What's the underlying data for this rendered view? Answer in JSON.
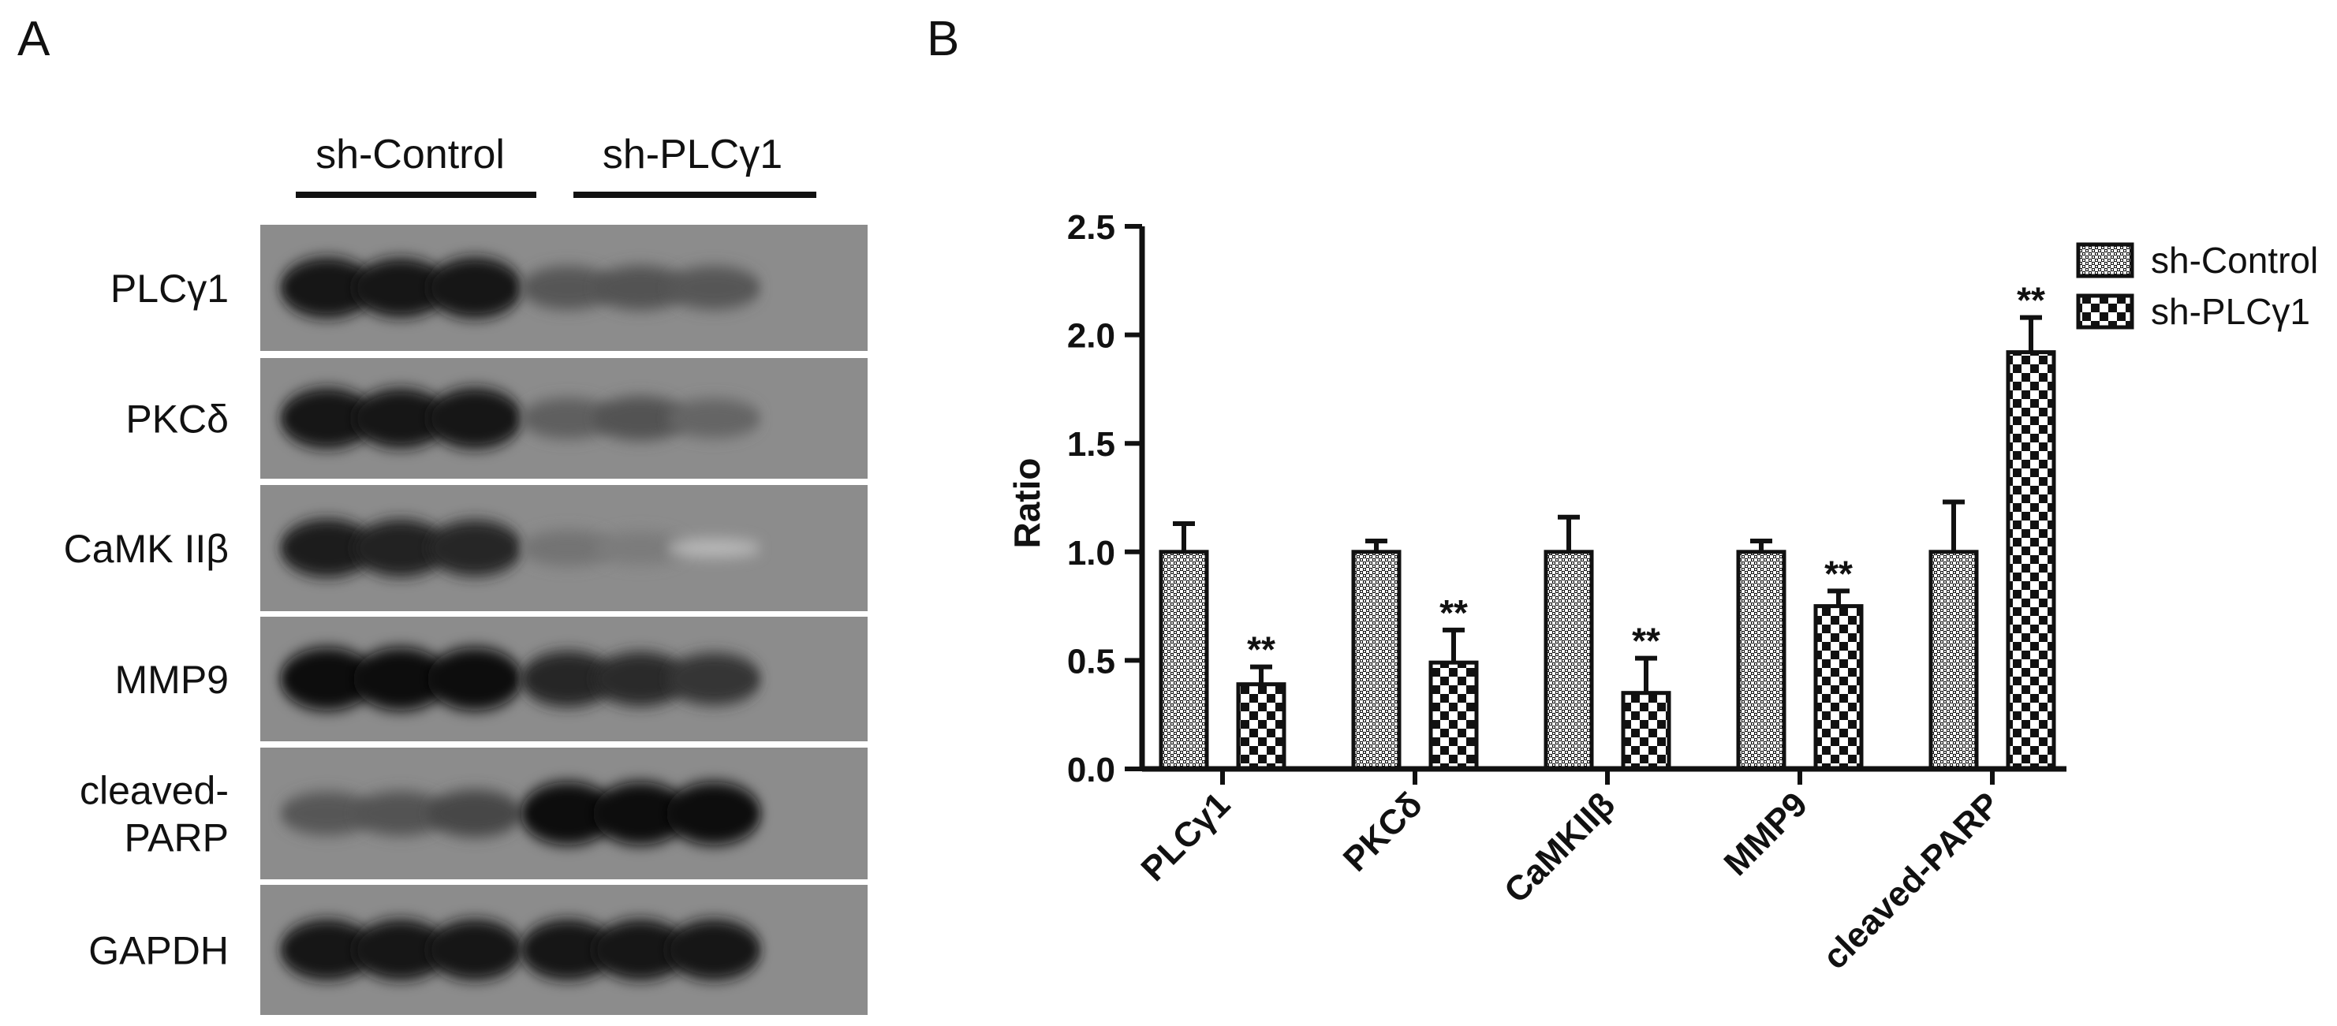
{
  "panels": {
    "a_label": "A",
    "b_label": "B"
  },
  "blot": {
    "groups": [
      "sh-Control",
      "sh-PLCγ1"
    ],
    "rows": [
      {
        "label_lines": [
          "PLCγ1"
        ],
        "band_intensity": [
          0.95,
          0.92,
          0.96,
          0.6,
          0.62,
          0.6
        ]
      },
      {
        "label_lines": [
          "PKCδ"
        ],
        "band_intensity": [
          0.95,
          0.93,
          0.96,
          0.55,
          0.62,
          0.52
        ]
      },
      {
        "label_lines": [
          "CaMK IIβ"
        ],
        "band_intensity": [
          0.9,
          0.88,
          0.86,
          0.45,
          0.4,
          0.08
        ]
      },
      {
        "label_lines": [
          "MMP9"
        ],
        "band_intensity": [
          1.0,
          1.0,
          1.0,
          0.85,
          0.82,
          0.78
        ]
      },
      {
        "label_lines": [
          "cleaved-",
          "PARP"
        ],
        "band_intensity": [
          0.6,
          0.62,
          0.68,
          1.0,
          1.0,
          1.0
        ]
      },
      {
        "label_lines": [
          "GAPDH"
        ],
        "band_intensity": [
          0.95,
          0.95,
          0.95,
          0.95,
          0.95,
          0.95
        ]
      }
    ]
  },
  "chart_data": {
    "type": "bar",
    "categories": [
      "PLCγ1",
      "PKCδ",
      "CaMKIIβ",
      "MMP9",
      "cleaved-PARP"
    ],
    "series": [
      {
        "name": "sh-Control",
        "values": [
          1.0,
          1.0,
          1.0,
          1.0,
          1.0
        ],
        "errors": [
          0.13,
          0.05,
          0.16,
          0.05,
          0.23
        ],
        "significance": [
          "",
          "",
          "",
          "",
          ""
        ]
      },
      {
        "name": "sh-PLCγ1",
        "values": [
          0.39,
          0.49,
          0.35,
          0.75,
          1.92
        ],
        "errors": [
          0.08,
          0.15,
          0.16,
          0.07,
          0.16
        ],
        "significance": [
          "**",
          "**",
          "**",
          "**",
          "**"
        ]
      }
    ],
    "ylabel": "Ratio",
    "xlabel": "",
    "ylim": [
      0,
      2.5
    ],
    "yticks": [
      "0.0",
      "0.5",
      "1.0",
      "1.5",
      "2.0",
      "2.5"
    ],
    "grid": false,
    "legend_position": "top-right"
  }
}
